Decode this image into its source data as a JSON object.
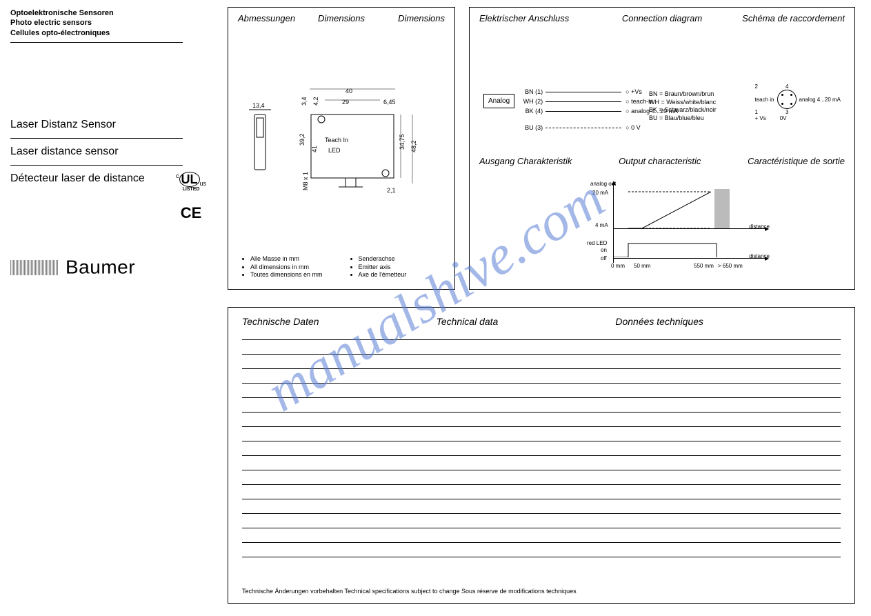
{
  "header": {
    "de": "Optoelektronische Sensoren",
    "en": "Photo electric sensors",
    "fr": "Cellules opto-électroniques"
  },
  "product": {
    "de": "Laser Distanz Sensor",
    "en": "Laser distance sensor",
    "fr": "Détecteur laser de distance"
  },
  "cert": {
    "ul_c": "c",
    "ul": "UL",
    "ul_us": "us",
    "listed": "LISTED",
    "ce": "CE"
  },
  "brand": "Baumer",
  "dimensions": {
    "title_de": "Abmessungen",
    "title_en": "Dimensions",
    "title_fr": "Dimensions",
    "values": {
      "w_side": "13,4",
      "h_side": "39,2",
      "top_34": "3,4",
      "top_42": "4,2",
      "top_40": "40",
      "top_29": "29",
      "top_645": "6,45",
      "h_41": "41",
      "h_3475": "34,75",
      "h_482": "48,2",
      "bot_21": "2,1",
      "thread": "M8 x 1",
      "teach": "Teach In",
      "led": "LED"
    },
    "notes_left": [
      "Alle Masse in mm",
      "All dimensions in mm",
      "Toutes dimensions en mm"
    ],
    "notes_right": [
      "Senderachse",
      "Emitter axis",
      "Axe de l'émetteur"
    ]
  },
  "connection": {
    "title_de": "Elektrischer Anschluss",
    "title_en": "Connection diagram",
    "title_fr": "Schéma de raccordement",
    "analog": "Analog",
    "wires": [
      {
        "label": "BN (1)",
        "sig": "+Vs",
        "dashed": false
      },
      {
        "label": "WH (2)",
        "sig": "teach-in",
        "dashed": false
      },
      {
        "label": "BK (4)",
        "sig": "analog 4...20  mA",
        "dashed": false
      },
      {
        "label": "BU (3)",
        "sig": "0 V",
        "dashed": true
      }
    ],
    "legend": [
      "BN = Braun/brown/brun",
      "WH = Weiss/white/blanc",
      "BK = Schwarz/black/noir",
      "BU = Blau/blue/bleu"
    ],
    "pins": {
      "p1": "1",
      "p2": "2",
      "p3": "3",
      "p4": "4",
      "l1": "+ Vs",
      "l2": "teach in",
      "l3": "0V",
      "l4": "analog 4...20 mA"
    }
  },
  "output_char": {
    "title_de": "Ausgang Charakteristik",
    "title_en": "Output characteristic",
    "title_fr": "Caractéristique de sortie",
    "ylabel": "analog out",
    "y_hi": "20 mA",
    "y_lo": "4 mA",
    "led_label": "red LED",
    "on": "on",
    "off": "off",
    "xaxis": "distance",
    "xticks": [
      "0 mm",
      "50 mm",
      "550 mm",
      "> 650 mm"
    ]
  },
  "tech": {
    "title_de": "Technische Daten",
    "title_en": "Technical data",
    "title_fr": "Données techniques",
    "row_count": 16,
    "footer": "Technische Änderungen vorbehalten  Technical specifications subject to change  Sous réserve de modifications techniques"
  },
  "watermark": "manualshive.com",
  "colors": {
    "line": "#000000",
    "gray": "#bbbbbb",
    "watermark": "#5b7fd6"
  }
}
